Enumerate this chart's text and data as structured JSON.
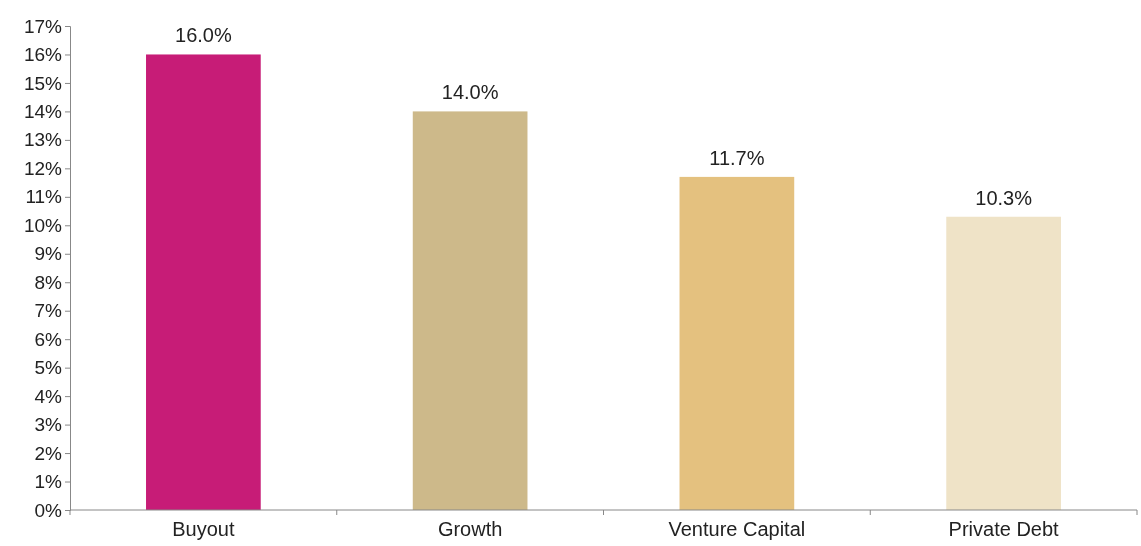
{
  "chart_data": {
    "type": "bar",
    "categories": [
      "Buyout",
      "Growth",
      "Venture Capital",
      "Private Debt"
    ],
    "values": [
      16.0,
      14.0,
      11.7,
      10.3
    ],
    "colors": [
      "#c71c77",
      "#cdb98a",
      "#e4c17f",
      "#efe3c7"
    ],
    "value_labels": [
      "16.0%",
      "14.0%",
      "11.7%",
      "10.3%"
    ],
    "ylim": [
      0,
      17
    ],
    "yticks": [
      {
        "value": 0,
        "label": "0%"
      },
      {
        "value": 1,
        "label": "1%"
      },
      {
        "value": 2,
        "label": "2%"
      },
      {
        "value": 3,
        "label": "3%"
      },
      {
        "value": 4,
        "label": "4%"
      },
      {
        "value": 5,
        "label": "5%"
      },
      {
        "value": 6,
        "label": "6%"
      },
      {
        "value": 7,
        "label": "7%"
      },
      {
        "value": 8,
        "label": "8%"
      },
      {
        "value": 9,
        "label": "9%"
      },
      {
        "value": 10,
        "label": "10%"
      },
      {
        "value": 11,
        "label": "11%"
      },
      {
        "value": 12,
        "label": "12%"
      },
      {
        "value": 13,
        "label": "13%"
      },
      {
        "value": 14,
        "label": "14%"
      },
      {
        "value": 15,
        "label": "15%"
      },
      {
        "value": 16,
        "label": "16%"
      },
      {
        "value": 17,
        "label": "17%"
      }
    ],
    "grid": false
  }
}
